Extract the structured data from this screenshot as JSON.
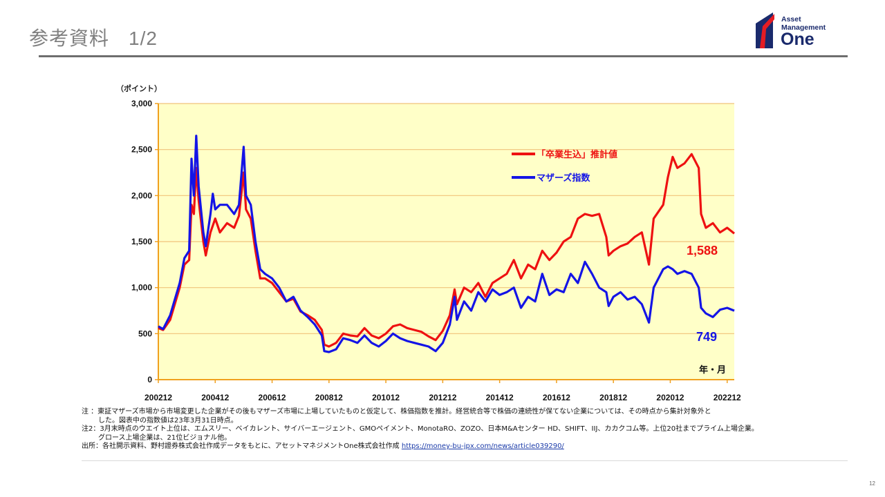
{
  "page": {
    "title": "参考資料",
    "page_indicator": "1/2",
    "page_number": "12"
  },
  "logo": {
    "line1": "Asset",
    "line2": "Management",
    "line3": "One"
  },
  "notes": {
    "note1": "注 ：東証マザーズ市場から市場変更した企業がその後もマザーズ市場に上場していたものと仮定して、株価指数を推計。経営統合等で株価の連続性が保てない企業については、その時点から集計対象外と",
    "note1_cont": "した。図表中の指数値は23年3月31日時点。",
    "note2": "注2：3月末時点のウエイト上位は、エムスリー、ベイカレント、サイバーエージェント、GMOペイメント、MonotaRO、ZOZO、日本M&Aセンター HD、SHIFT、IIJ、カカクコム等。上位20社までプライム上場企業。",
    "note2_cont": "グロース上場企業は、21位ビジョナル他。",
    "source_prefix": "出所：各社開示資料、野村證券株式会社作成データをもとに、アセットマネジメントOne株式会社作成",
    "source_link": "https://money-bu-jpx.com/news/article039290/"
  },
  "chart_data": {
    "type": "line",
    "unit_label": "（ポイント）",
    "x_axis_label": "年・月",
    "y_ticks": [
      "3,000",
      "2,500",
      "2,000",
      "1,500",
      "1,000",
      "500",
      "0"
    ],
    "ylim": [
      0,
      3000
    ],
    "x_ticks": [
      "200212",
      "200412",
      "200612",
      "200812",
      "201012",
      "201212",
      "201412",
      "201612",
      "201812",
      "202012",
      "202212"
    ],
    "x_range": [
      "2002-12",
      "2023-03"
    ],
    "grid": "horizontal",
    "plot_background": "#ffffc8",
    "legend_placement": "upper-right",
    "series": [
      {
        "name": "「卒業生込」推計値",
        "color": "#ee1111",
        "end_label": "1,588",
        "points": [
          [
            "2002-12",
            560
          ],
          [
            "2003-02",
            540
          ],
          [
            "2003-05",
            650
          ],
          [
            "2003-09",
            1000
          ],
          [
            "2003-11",
            1250
          ],
          [
            "2004-01",
            1300
          ],
          [
            "2004-02",
            1900
          ],
          [
            "2004-03",
            1800
          ],
          [
            "2004-04",
            2300
          ],
          [
            "2004-05",
            1950
          ],
          [
            "2004-07",
            1500
          ],
          [
            "2004-08",
            1350
          ],
          [
            "2004-10",
            1600
          ],
          [
            "2004-12",
            1750
          ],
          [
            "2005-02",
            1600
          ],
          [
            "2005-05",
            1700
          ],
          [
            "2005-08",
            1650
          ],
          [
            "2005-10",
            1780
          ],
          [
            "2005-12",
            2250
          ],
          [
            "2006-01",
            1850
          ],
          [
            "2006-03",
            1750
          ],
          [
            "2006-05",
            1400
          ],
          [
            "2006-07",
            1100
          ],
          [
            "2006-09",
            1100
          ],
          [
            "2006-12",
            1050
          ],
          [
            "2007-03",
            950
          ],
          [
            "2007-06",
            850
          ],
          [
            "2007-09",
            880
          ],
          [
            "2007-12",
            740
          ],
          [
            "2008-03",
            700
          ],
          [
            "2008-06",
            650
          ],
          [
            "2008-09",
            540
          ],
          [
            "2008-10",
            380
          ],
          [
            "2008-12",
            360
          ],
          [
            "2009-03",
            400
          ],
          [
            "2009-06",
            500
          ],
          [
            "2009-09",
            480
          ],
          [
            "2009-12",
            470
          ],
          [
            "2010-03",
            560
          ],
          [
            "2010-06",
            480
          ],
          [
            "2010-09",
            450
          ],
          [
            "2010-12",
            500
          ],
          [
            "2011-03",
            580
          ],
          [
            "2011-06",
            600
          ],
          [
            "2011-09",
            560
          ],
          [
            "2011-12",
            540
          ],
          [
            "2012-03",
            520
          ],
          [
            "2012-06",
            470
          ],
          [
            "2012-09",
            430
          ],
          [
            "2012-12",
            530
          ],
          [
            "2013-03",
            700
          ],
          [
            "2013-05",
            980
          ],
          [
            "2013-06",
            820
          ],
          [
            "2013-09",
            1000
          ],
          [
            "2013-12",
            950
          ],
          [
            "2014-03",
            1050
          ],
          [
            "2014-06",
            900
          ],
          [
            "2014-09",
            1050
          ],
          [
            "2014-12",
            1100
          ],
          [
            "2015-03",
            1150
          ],
          [
            "2015-06",
            1300
          ],
          [
            "2015-09",
            1100
          ],
          [
            "2015-12",
            1250
          ],
          [
            "2016-03",
            1200
          ],
          [
            "2016-06",
            1400
          ],
          [
            "2016-09",
            1300
          ],
          [
            "2016-12",
            1380
          ],
          [
            "2017-03",
            1500
          ],
          [
            "2017-06",
            1550
          ],
          [
            "2017-09",
            1750
          ],
          [
            "2017-12",
            1800
          ],
          [
            "2018-03",
            1780
          ],
          [
            "2018-06",
            1800
          ],
          [
            "2018-09",
            1550
          ],
          [
            "2018-10",
            1350
          ],
          [
            "2018-12",
            1400
          ],
          [
            "2019-03",
            1450
          ],
          [
            "2019-06",
            1480
          ],
          [
            "2019-09",
            1550
          ],
          [
            "2019-12",
            1600
          ],
          [
            "2020-03",
            1250
          ],
          [
            "2020-05",
            1750
          ],
          [
            "2020-09",
            1900
          ],
          [
            "2020-11",
            2200
          ],
          [
            "2021-01",
            2420
          ],
          [
            "2021-03",
            2300
          ],
          [
            "2021-06",
            2350
          ],
          [
            "2021-09",
            2450
          ],
          [
            "2021-12",
            2300
          ],
          [
            "2022-01",
            1800
          ],
          [
            "2022-03",
            1650
          ],
          [
            "2022-06",
            1700
          ],
          [
            "2022-09",
            1600
          ],
          [
            "2022-12",
            1650
          ],
          [
            "2023-03",
            1588
          ]
        ]
      },
      {
        "name": "マザーズ指数",
        "color": "#1414e6",
        "end_label": "749",
        "points": [
          [
            "2002-12",
            580
          ],
          [
            "2003-02",
            550
          ],
          [
            "2003-05",
            700
          ],
          [
            "2003-09",
            1050
          ],
          [
            "2003-11",
            1320
          ],
          [
            "2004-01",
            1400
          ],
          [
            "2004-02",
            2400
          ],
          [
            "2004-03",
            2000
          ],
          [
            "2004-04",
            2650
          ],
          [
            "2004-05",
            2100
          ],
          [
            "2004-07",
            1600
          ],
          [
            "2004-08",
            1450
          ],
          [
            "2004-10",
            1800
          ],
          [
            "2004-11",
            2020
          ],
          [
            "2004-12",
            1850
          ],
          [
            "2005-02",
            1900
          ],
          [
            "2005-05",
            1900
          ],
          [
            "2005-08",
            1800
          ],
          [
            "2005-10",
            1900
          ],
          [
            "2005-12",
            2530
          ],
          [
            "2006-01",
            2000
          ],
          [
            "2006-03",
            1900
          ],
          [
            "2006-05",
            1500
          ],
          [
            "2006-07",
            1200
          ],
          [
            "2006-09",
            1150
          ],
          [
            "2006-12",
            1100
          ],
          [
            "2007-03",
            1000
          ],
          [
            "2007-06",
            850
          ],
          [
            "2007-09",
            900
          ],
          [
            "2007-12",
            750
          ],
          [
            "2008-03",
            680
          ],
          [
            "2008-06",
            600
          ],
          [
            "2008-09",
            480
          ],
          [
            "2008-10",
            310
          ],
          [
            "2008-12",
            300
          ],
          [
            "2009-03",
            330
          ],
          [
            "2009-06",
            450
          ],
          [
            "2009-09",
            430
          ],
          [
            "2009-12",
            400
          ],
          [
            "2010-03",
            480
          ],
          [
            "2010-06",
            400
          ],
          [
            "2010-09",
            360
          ],
          [
            "2010-12",
            420
          ],
          [
            "2011-03",
            500
          ],
          [
            "2011-06",
            450
          ],
          [
            "2011-09",
            420
          ],
          [
            "2011-12",
            400
          ],
          [
            "2012-03",
            380
          ],
          [
            "2012-06",
            360
          ],
          [
            "2012-09",
            310
          ],
          [
            "2012-12",
            400
          ],
          [
            "2013-03",
            600
          ],
          [
            "2013-05",
            900
          ],
          [
            "2013-06",
            650
          ],
          [
            "2013-09",
            850
          ],
          [
            "2013-12",
            750
          ],
          [
            "2014-03",
            950
          ],
          [
            "2014-06",
            850
          ],
          [
            "2014-09",
            980
          ],
          [
            "2014-12",
            920
          ],
          [
            "2015-03",
            950
          ],
          [
            "2015-06",
            1000
          ],
          [
            "2015-09",
            780
          ],
          [
            "2015-12",
            900
          ],
          [
            "2016-03",
            850
          ],
          [
            "2016-06",
            1150
          ],
          [
            "2016-09",
            920
          ],
          [
            "2016-12",
            980
          ],
          [
            "2017-03",
            950
          ],
          [
            "2017-06",
            1150
          ],
          [
            "2017-09",
            1050
          ],
          [
            "2017-12",
            1280
          ],
          [
            "2018-03",
            1150
          ],
          [
            "2018-06",
            1000
          ],
          [
            "2018-09",
            950
          ],
          [
            "2018-10",
            800
          ],
          [
            "2018-12",
            900
          ],
          [
            "2019-03",
            950
          ],
          [
            "2019-06",
            870
          ],
          [
            "2019-09",
            900
          ],
          [
            "2019-12",
            820
          ],
          [
            "2020-03",
            620
          ],
          [
            "2020-05",
            1000
          ],
          [
            "2020-09",
            1200
          ],
          [
            "2020-11",
            1230
          ],
          [
            "2021-01",
            1200
          ],
          [
            "2021-03",
            1150
          ],
          [
            "2021-06",
            1180
          ],
          [
            "2021-09",
            1150
          ],
          [
            "2021-12",
            1000
          ],
          [
            "2022-01",
            780
          ],
          [
            "2022-03",
            720
          ],
          [
            "2022-06",
            680
          ],
          [
            "2022-09",
            760
          ],
          [
            "2022-12",
            780
          ],
          [
            "2023-03",
            749
          ]
        ]
      }
    ]
  }
}
